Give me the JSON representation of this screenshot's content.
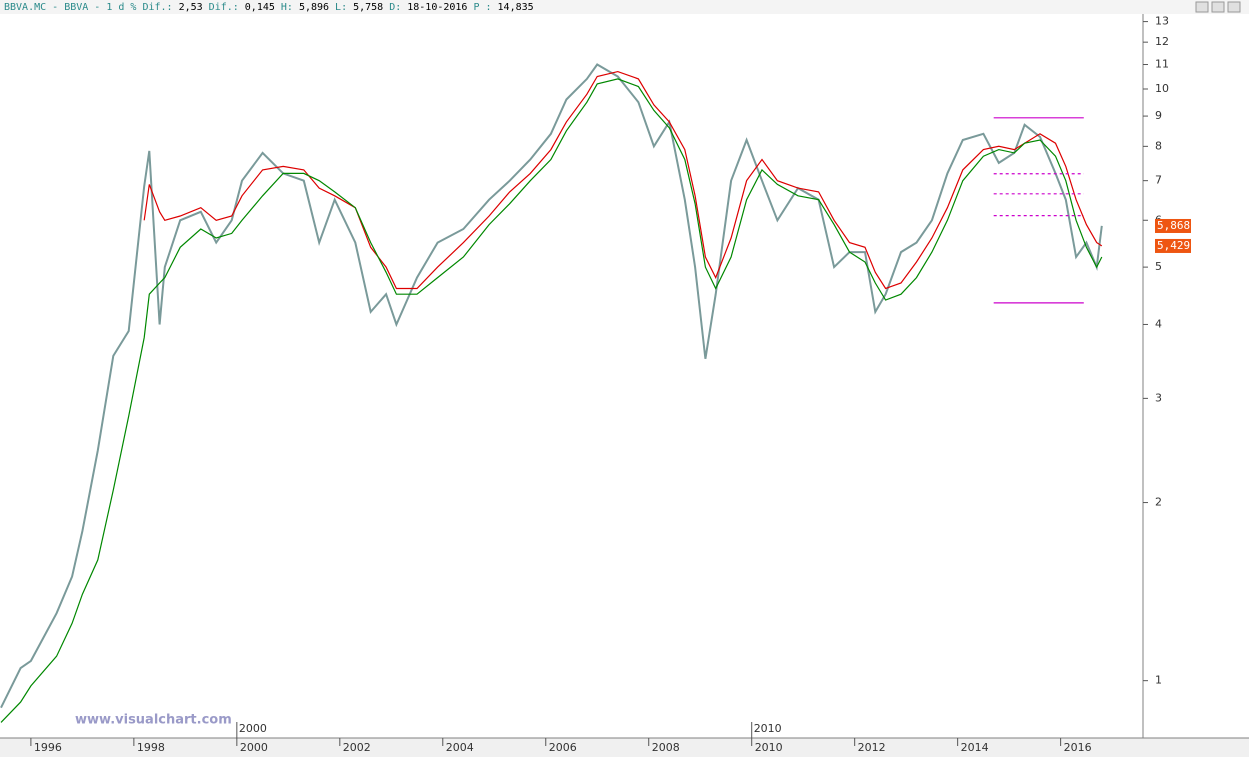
{
  "chart_data": {
    "type": "line",
    "header": [
      "BBVA.MC - BBVA -  1 d % Dif.:",
      "2,53",
      "Dif.:",
      "0,145",
      "H:",
      "5,896",
      "L:",
      "5,758",
      "D:",
      "18-10-2016",
      "P :",
      "14,835"
    ],
    "watermark": "www.visualchart.com",
    "log_scale": true,
    "xlim": [
      1995.4,
      2017.6
    ],
    "xticks": [
      1996,
      1998,
      2000,
      2002,
      2004,
      2006,
      2008,
      2010,
      2012,
      2014,
      2016
    ],
    "decade_ticks": [
      2000,
      2010
    ],
    "ylim": [
      0.8,
      13.6
    ],
    "yticks": [
      1,
      2,
      3,
      4,
      5,
      6,
      7,
      8,
      9,
      10,
      11,
      12,
      13
    ],
    "x": [
      1995.42,
      1995.8,
      1996.0,
      1996.5,
      1996.8,
      1997.0,
      1997.3,
      1997.6,
      1997.9,
      1998.2,
      1998.3,
      1998.5,
      1998.6,
      1998.9,
      1999.3,
      1999.6,
      1999.9,
      2000.1,
      2000.5,
      2000.9,
      2001.3,
      2001.6,
      2001.9,
      2002.3,
      2002.6,
      2002.9,
      2003.1,
      2003.5,
      2003.9,
      2004.4,
      2004.9,
      2005.3,
      2005.7,
      2006.1,
      2006.4,
      2006.8,
      2007.0,
      2007.4,
      2007.8,
      2008.1,
      2008.4,
      2008.7,
      2008.9,
      2009.1,
      2009.3,
      2009.6,
      2009.9,
      2010.2,
      2010.5,
      2010.9,
      2011.3,
      2011.6,
      2011.9,
      2012.2,
      2012.4,
      2012.6,
      2012.9,
      2013.2,
      2013.5,
      2013.8,
      2014.1,
      2014.5,
      2014.8,
      2015.1,
      2015.3,
      2015.6,
      2015.9,
      2016.1,
      2016.3,
      2016.5,
      2016.7,
      2016.8
    ],
    "series": [
      {
        "color": "#7a9a9a",
        "values": [
          0.9,
          1.05,
          1.08,
          1.3,
          1.5,
          1.79,
          2.45,
          3.54,
          3.9,
          6.85,
          7.86,
          4.0,
          5.0,
          6.0,
          6.2,
          5.5,
          6.0,
          7.0,
          7.8,
          7.2,
          7.0,
          5.5,
          6.5,
          5.5,
          4.2,
          4.5,
          4.0,
          4.8,
          5.5,
          5.8,
          6.5,
          7.0,
          7.6,
          8.4,
          9.6,
          10.4,
          11.0,
          10.5,
          9.5,
          8.0,
          8.8,
          6.5,
          5.0,
          3.5,
          4.5,
          7.0,
          8.2,
          7.0,
          6.0,
          6.8,
          6.5,
          5.0,
          5.3,
          5.3,
          4.2,
          4.5,
          5.3,
          5.5,
          6.0,
          7.2,
          8.2,
          8.4,
          7.5,
          7.8,
          8.7,
          8.3,
          7.2,
          6.5,
          5.2,
          5.5,
          5.0,
          5.87
        ]
      },
      {
        "color": "#dd0000",
        "values": [
          null,
          null,
          null,
          null,
          null,
          null,
          null,
          null,
          null,
          6.0,
          6.9,
          6.2,
          6.0,
          6.1,
          6.3,
          6.0,
          6.1,
          6.6,
          7.3,
          7.4,
          7.3,
          6.8,
          6.6,
          6.3,
          5.4,
          5.0,
          4.6,
          4.6,
          5.0,
          5.5,
          6.1,
          6.7,
          7.2,
          7.9,
          8.8,
          9.8,
          10.5,
          10.7,
          10.4,
          9.4,
          8.8,
          7.9,
          6.6,
          5.2,
          4.8,
          5.6,
          7.0,
          7.6,
          7.0,
          6.8,
          6.7,
          6.0,
          5.5,
          5.4,
          4.9,
          4.6,
          4.7,
          5.1,
          5.6,
          6.3,
          7.3,
          7.9,
          8.0,
          7.9,
          8.1,
          8.4,
          8.1,
          7.4,
          6.5,
          5.9,
          5.5,
          5.43
        ]
      },
      {
        "color": "#008800",
        "values": [
          0.85,
          0.92,
          0.98,
          1.1,
          1.25,
          1.4,
          1.6,
          2.1,
          2.8,
          3.8,
          4.5,
          4.7,
          4.8,
          5.4,
          5.8,
          5.6,
          5.7,
          6.0,
          6.6,
          7.2,
          7.2,
          7.0,
          6.7,
          6.3,
          5.5,
          4.9,
          4.5,
          4.5,
          4.8,
          5.2,
          5.9,
          6.4,
          7.0,
          7.6,
          8.5,
          9.5,
          10.2,
          10.4,
          10.1,
          9.2,
          8.6,
          7.6,
          6.4,
          5.0,
          4.6,
          5.2,
          6.5,
          7.3,
          6.9,
          6.6,
          6.5,
          5.9,
          5.3,
          5.1,
          4.7,
          4.4,
          4.5,
          4.8,
          5.3,
          6.0,
          7.0,
          7.7,
          7.9,
          7.8,
          8.1,
          8.2,
          7.7,
          7.0,
          6.0,
          5.4,
          5.0,
          5.2
        ]
      }
    ],
    "hlines": [
      {
        "value": 8.94,
        "x": [
          2014.7,
          2016.45
        ],
        "color": "#cc00cc",
        "dashed": false
      },
      {
        "value": 7.19,
        "x": [
          2014.7,
          2016.45
        ],
        "color": "#cc00cc",
        "dashed": true
      },
      {
        "value": 6.65,
        "x": [
          2014.7,
          2016.45
        ],
        "color": "#cc00cc",
        "dashed": true
      },
      {
        "value": 6.11,
        "x": [
          2014.7,
          2016.45
        ],
        "color": "#cc00cc",
        "dashed": true
      },
      {
        "value": 4.35,
        "x": [
          2014.7,
          2016.45
        ],
        "color": "#cc00cc",
        "dashed": false
      }
    ],
    "price_labels": [
      {
        "value": 5.868,
        "label": "5,868"
      },
      {
        "value": 5.429,
        "label": "5,429"
      }
    ]
  }
}
